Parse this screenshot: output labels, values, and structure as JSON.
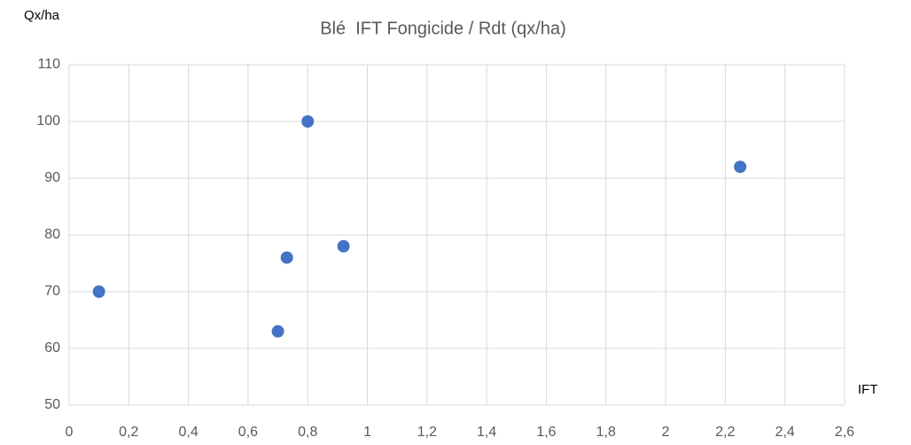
{
  "chart_data": {
    "type": "scatter",
    "title": "Blé  IFT Fongicide / Rdt (qx/ha)",
    "y_label": "Qx/ha",
    "x_label": "IFT",
    "series": [
      {
        "color": "#4472c4",
        "x": [
          0.1,
          0.7,
          0.73,
          0.8,
          0.92,
          2.25
        ],
        "values": [
          70,
          63,
          76,
          100,
          78,
          92
        ]
      }
    ],
    "xlim": [
      0,
      2.6
    ],
    "xticks": [
      0,
      {
        "value": 0.2,
        "label": "0,2"
      },
      {
        "value": 0.4,
        "label": "0,4"
      },
      {
        "value": 0.6,
        "label": "0,6"
      },
      {
        "value": 0.8,
        "label": "0,8"
      },
      1,
      {
        "value": 1.2,
        "label": "1,2"
      },
      {
        "value": 1.4,
        "label": "1,4"
      },
      {
        "value": 1.6,
        "label": "1,6"
      },
      {
        "value": 1.8,
        "label": "1,8"
      },
      2,
      {
        "value": 2.2,
        "label": "2,2"
      },
      {
        "value": 2.4,
        "label": "2,4"
      },
      {
        "value": 2.6,
        "label": "2,6"
      }
    ],
    "ylim": [
      50,
      110
    ],
    "yticks": [
      50,
      60,
      70,
      80,
      90,
      100,
      110
    ],
    "grid": true
  }
}
